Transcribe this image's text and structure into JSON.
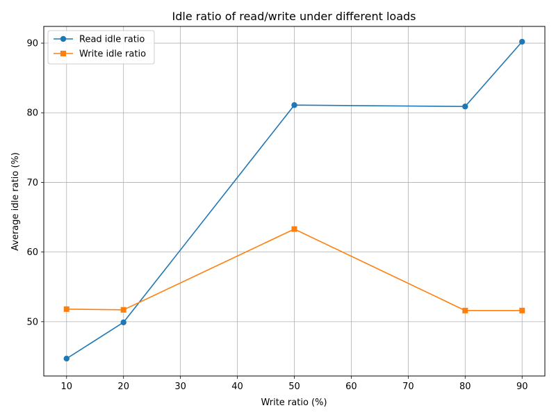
{
  "chart_data": {
    "type": "line",
    "title": "Idle ratio of read/write under different loads",
    "xlabel": "Write ratio (%)",
    "ylabel": "Average idle ratio (%)",
    "x": [
      10,
      20,
      50,
      80,
      90
    ],
    "xlim": [
      6,
      94
    ],
    "ylim": [
      42.2,
      92.4
    ],
    "xticks": [
      10,
      20,
      30,
      40,
      50,
      60,
      70,
      80,
      90
    ],
    "yticks": [
      50,
      60,
      70,
      80,
      90
    ],
    "grid": true,
    "legend_position": "upper-left",
    "series": [
      {
        "name": "Read idle ratio",
        "values": [
          44.7,
          49.9,
          81.1,
          80.9,
          90.2
        ],
        "color": "#1f77b4",
        "marker": "circle"
      },
      {
        "name": "Write idle ratio",
        "values": [
          51.8,
          51.7,
          63.3,
          51.6,
          51.6
        ],
        "color": "#ff7f0e",
        "marker": "square"
      }
    ]
  }
}
